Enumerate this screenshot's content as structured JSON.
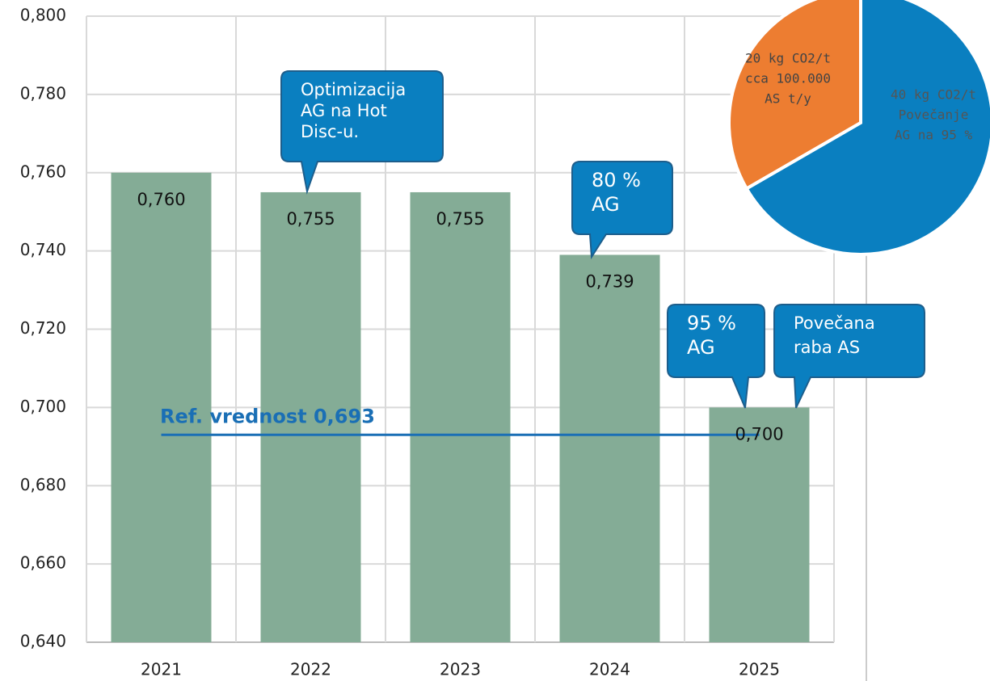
{
  "chart_data": [
    {
      "type": "bar",
      "categories": [
        "2021",
        "2022",
        "2023",
        "2024",
        "2025"
      ],
      "values": [
        0.76,
        0.755,
        0.755,
        0.739,
        0.7
      ],
      "value_labels": [
        "0,760",
        "0,755",
        "0,755",
        "0,739",
        "0,700"
      ],
      "color": "#84ac96",
      "ylim": [
        0.64,
        0.8
      ],
      "yticks": [
        {
          "value": 0.64,
          "label": "0,640"
        },
        {
          "value": 0.66,
          "label": "0,660"
        },
        {
          "value": 0.68,
          "label": "0,680"
        },
        {
          "value": 0.7,
          "label": "0,700"
        },
        {
          "value": 0.72,
          "label": "0,720"
        },
        {
          "value": 0.74,
          "label": "0,740"
        },
        {
          "value": 0.76,
          "label": "0,760"
        },
        {
          "value": 0.78,
          "label": "0,780"
        },
        {
          "value": 0.8,
          "label": "0,800"
        }
      ],
      "grid": true,
      "reference_line": {
        "value": 0.693,
        "label": "Ref. vrednost 0,693",
        "color": "#1a6fb5"
      },
      "annotations": [
        {
          "lines": [
            "Optimizacija",
            "AG na Hot",
            "Disc-u."
          ]
        },
        {
          "lines": [
            "80 %",
            "AG"
          ]
        },
        {
          "lines": [
            "95 %",
            "AG"
          ]
        },
        {
          "lines": [
            "Povečana",
            "raba AS"
          ]
        }
      ]
    },
    {
      "type": "pie",
      "slices": [
        {
          "lines": [
            "20 kg CO2/t",
            "cca 100.000",
            "AS t/y"
          ],
          "value": 20,
          "color": "#ed7d31"
        },
        {
          "lines": [
            "40 kg CO2/t",
            "Povečanje",
            "AG na 95 %"
          ],
          "value": 40,
          "color": "#0a7fc0"
        }
      ]
    }
  ]
}
